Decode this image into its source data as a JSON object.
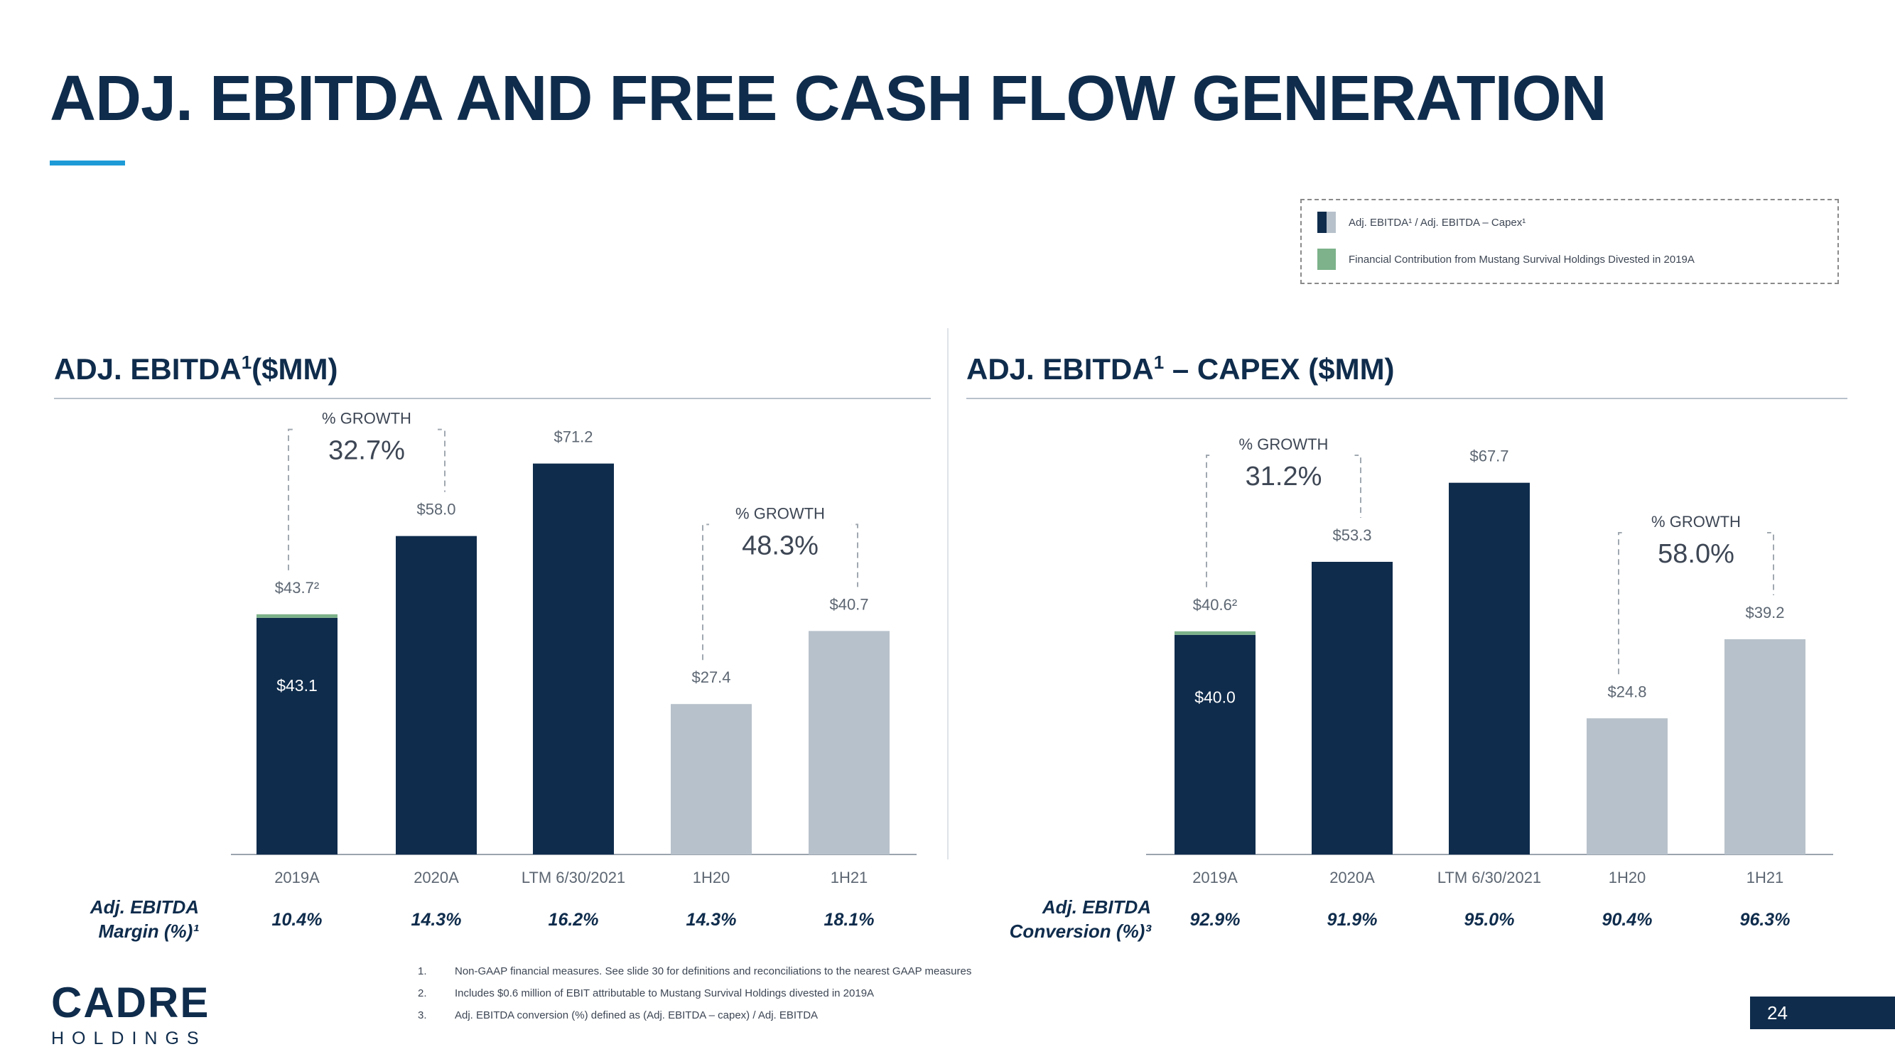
{
  "title": "ADJ. EBITDA AND FREE CASH FLOW GENERATION",
  "legend": {
    "items": [
      {
        "label": "Adj. EBITDA¹ / Adj. EBITDA – Capex¹",
        "colors": [
          "#0f2c4c",
          "#b7c1cb"
        ]
      },
      {
        "label": "Financial Contribution from Mustang Survival Holdings Divested in 2019A",
        "colors": [
          "#7db28a"
        ]
      }
    ]
  },
  "panels": {
    "left": {
      "title": "ADJ. EBITDA",
      "sup": "1",
      "suffix": "($MM)",
      "row_label_1": "Adj. EBITDA",
      "row_label_2": "Margin (%)¹"
    },
    "right": {
      "title": "ADJ. EBITDA",
      "sup": "1",
      "suffix": " – CAPEX ($MM)",
      "row_label_1": "Adj. EBITDA",
      "row_label_2": "Conversion (%)³"
    }
  },
  "chart_data": [
    {
      "type": "bar",
      "title": "ADJ. EBITDA¹($MM)",
      "categories": [
        "2019A",
        "2020A",
        "LTM 6/30/2021",
        "1H20",
        "1H21"
      ],
      "series": [
        {
          "values": [
            43.1,
            58.0,
            71.2,
            27.4,
            40.7
          ],
          "colors": [
            "#0f2c4c",
            "#0f2c4c",
            "#0f2c4c",
            "#b7c1cb",
            "#b7c1cb"
          ]
        },
        {
          "name": "Financial Contribution from Mustang Survival Holdings Divested in 2019A",
          "values": [
            0.6,
            0,
            0,
            0,
            0
          ],
          "color": "#7db28a"
        }
      ],
      "top_labels": [
        "$43.7²",
        "$58.0",
        "$71.2",
        "$27.4",
        "$40.7"
      ],
      "inner_labels": [
        "$43.1",
        "",
        "",
        "",
        ""
      ],
      "growth": [
        {
          "label": "% GROWTH",
          "value": "32.7%",
          "from": 0,
          "to": 1
        },
        {
          "label": "% GROWTH",
          "value": "48.3%",
          "from": 3,
          "to": 4
        }
      ],
      "bottom_values": [
        "10.4%",
        "14.3%",
        "16.2%",
        "14.3%",
        "18.1%"
      ],
      "ylim": [
        0,
        80
      ]
    },
    {
      "type": "bar",
      "title": "ADJ. EBITDA¹ – CAPEX ($MM)",
      "categories": [
        "2019A",
        "2020A",
        "LTM 6/30/2021",
        "1H20",
        "1H21"
      ],
      "series": [
        {
          "values": [
            40.0,
            53.3,
            67.7,
            24.8,
            39.2
          ],
          "colors": [
            "#0f2c4c",
            "#0f2c4c",
            "#0f2c4c",
            "#b7c1cb",
            "#b7c1cb"
          ]
        },
        {
          "name": "Financial Contribution from Mustang Survival Holdings Divested in 2019A",
          "values": [
            0.6,
            0,
            0,
            0,
            0
          ],
          "color": "#7db28a"
        }
      ],
      "top_labels": [
        "$40.6²",
        "$53.3",
        "$67.7",
        "$24.8",
        "$39.2"
      ],
      "inner_labels": [
        "$40.0",
        "",
        "",
        "",
        ""
      ],
      "growth": [
        {
          "label": "% GROWTH",
          "value": "31.2%",
          "from": 0,
          "to": 1
        },
        {
          "label": "% GROWTH",
          "value": "58.0%",
          "from": 3,
          "to": 4
        }
      ],
      "bottom_values": [
        "92.9%",
        "91.9%",
        "95.0%",
        "90.4%",
        "96.3%"
      ],
      "ylim": [
        0,
        80
      ]
    }
  ],
  "footnotes": [
    {
      "num": "1.",
      "text": "Non-GAAP financial measures. See slide 30 for definitions and reconciliations to the nearest GAAP measures"
    },
    {
      "num": "2.",
      "text": "Includes $0.6 million of EBIT attributable to Mustang Survival Holdings divested in 2019A"
    },
    {
      "num": "3.",
      "text": "Adj. EBITDA conversion (%) defined as (Adj. EBITDA – capex) / Adj. EBITDA"
    }
  ],
  "logo": {
    "main": "CADRE",
    "sub": "HOLDINGS"
  },
  "page_number": "24"
}
